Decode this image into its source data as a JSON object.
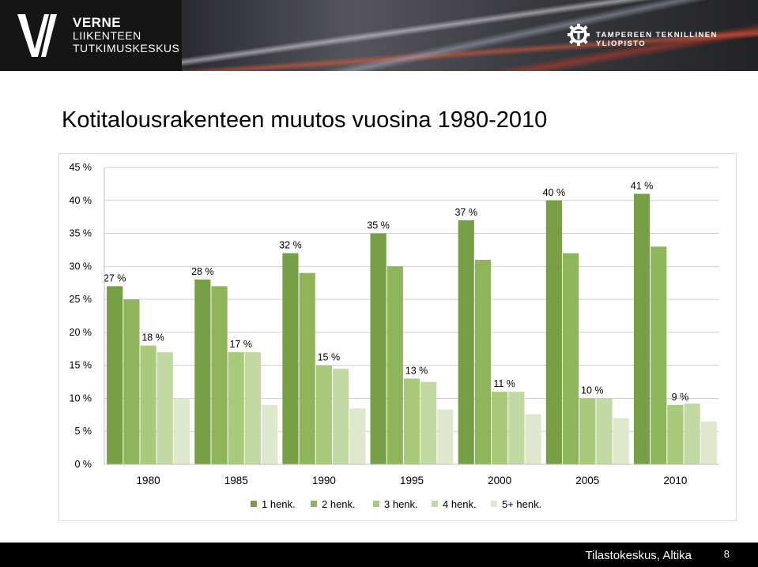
{
  "header": {
    "verne_line1": "VERNE",
    "verne_line2": "LIIKENTEEN",
    "verne_line3": "TUTKIMUSKESKUS",
    "university": "TAMPEREEN TEKNILLINEN YLIOPISTO"
  },
  "slide": {
    "title": "Kotitalousrakenteen muutos vuosina 1980-2010"
  },
  "chart_data": {
    "type": "bar",
    "categories": [
      "1980",
      "1985",
      "1990",
      "1995",
      "2000",
      "2005",
      "2010"
    ],
    "series": [
      {
        "name": "1 henk.",
        "color": "#77a046",
        "values": [
          27,
          28,
          32,
          35,
          37,
          40,
          41
        ]
      },
      {
        "name": "2 henk.",
        "color": "#8fb55a",
        "values": [
          25,
          27,
          29,
          30,
          31,
          32,
          33
        ]
      },
      {
        "name": "3 henk.",
        "color": "#a9c97b",
        "values": [
          18,
          17,
          15,
          13,
          11,
          10,
          9
        ]
      },
      {
        "name": "4 henk.",
        "color": "#c3d9a4",
        "values": [
          17,
          17,
          14.5,
          12.5,
          11,
          10,
          9.2
        ]
      },
      {
        "name": "5+ henk.",
        "color": "#dde8cc",
        "values": [
          10,
          9,
          8.5,
          8.3,
          7.6,
          7,
          6.5
        ]
      }
    ],
    "data_labels": [
      {
        "category": "1980",
        "series": "1 henk.",
        "text": "27 %"
      },
      {
        "category": "1985",
        "series": "1 henk.",
        "text": "28 %"
      },
      {
        "category": "1990",
        "series": "1 henk.",
        "text": "32 %"
      },
      {
        "category": "1995",
        "series": "1 henk.",
        "text": "35 %"
      },
      {
        "category": "2000",
        "series": "1 henk.",
        "text": "37 %"
      },
      {
        "category": "2005",
        "series": "1 henk.",
        "text": "40 %"
      },
      {
        "category": "2010",
        "series": "1 henk.",
        "text": "41 %"
      },
      {
        "category": "1980",
        "series": "3 henk.",
        "text": "18 %"
      },
      {
        "category": "1985",
        "series": "3 henk.",
        "text": "17 %"
      },
      {
        "category": "1990",
        "series": "3 henk.",
        "text": "15 %"
      },
      {
        "category": "1995",
        "series": "3 henk.",
        "text": "13 %"
      },
      {
        "category": "2000",
        "series": "3 henk.",
        "text": "11 %"
      },
      {
        "category": "2005",
        "series": "3 henk.",
        "text": "10 %"
      },
      {
        "category": "2010",
        "series": "3 henk.",
        "text": "9 %"
      }
    ],
    "y_ticks": [
      {
        "value": 0,
        "label": "0 %"
      },
      {
        "value": 5,
        "label": "5 %"
      },
      {
        "value": 10,
        "label": "10 %"
      },
      {
        "value": 15,
        "label": "15 %"
      },
      {
        "value": 20,
        "label": "20 %"
      },
      {
        "value": 25,
        "label": "25 %"
      },
      {
        "value": 30,
        "label": "30 %"
      },
      {
        "value": 35,
        "label": "35 %"
      },
      {
        "value": 40,
        "label": "40 %"
      },
      {
        "value": 45,
        "label": "45 %"
      }
    ],
    "ylim": [
      0,
      45
    ],
    "grid": true,
    "legend_position": "bottom"
  },
  "footer": {
    "source": "Tilastokeskus, Altika",
    "page_number": "8"
  }
}
